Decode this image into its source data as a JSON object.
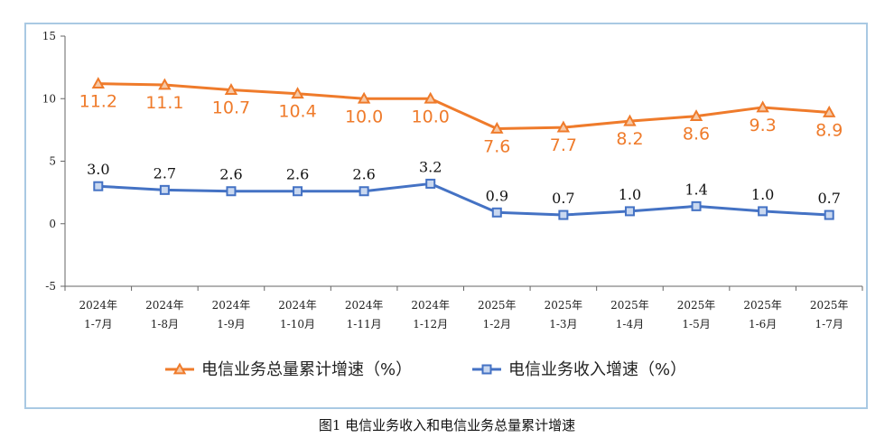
{
  "caption": "图1  电信业务收入和电信业务总量累计增速",
  "colors": {
    "orange": "#ef7b2b",
    "blue": "#4472c4",
    "axis": "#666666",
    "frame": "#a9c9e3"
  },
  "chart_data": {
    "type": "line",
    "categories": [
      [
        "2024年",
        "1-7月"
      ],
      [
        "2024年",
        "1-8月"
      ],
      [
        "2024年",
        "1-9月"
      ],
      [
        "2024年",
        "1-10月"
      ],
      [
        "2024年",
        "1-11月"
      ],
      [
        "2024年",
        "1-12月"
      ],
      [
        "2025年",
        "1-2月"
      ],
      [
        "2025年",
        "1-3月"
      ],
      [
        "2025年",
        "1-4月"
      ],
      [
        "2025年",
        "1-5月"
      ],
      [
        "2025年",
        "1-6月"
      ],
      [
        "2025年",
        "1-7月"
      ]
    ],
    "ylim": [
      -5,
      15
    ],
    "yticks": [
      -5,
      0,
      5,
      10,
      15
    ],
    "series": [
      {
        "name": "电信业务总量累计增速（%）",
        "marker": "triangle",
        "values": [
          11.2,
          11.1,
          10.7,
          10.4,
          10.0,
          10.0,
          7.6,
          7.7,
          8.2,
          8.6,
          9.3,
          8.9
        ],
        "labels": [
          "11.2",
          "11.1",
          "10.7",
          "10.4",
          "10.0",
          "10.0",
          "7.6",
          "7.7",
          "8.2",
          "8.6",
          "9.3",
          "8.9"
        ]
      },
      {
        "name": "电信业务收入增速（%）",
        "marker": "square",
        "values": [
          3.0,
          2.7,
          2.6,
          2.6,
          2.6,
          3.2,
          0.9,
          0.7,
          1.0,
          1.4,
          1.0,
          0.7
        ],
        "labels": [
          "3.0",
          "2.7",
          "2.6",
          "2.6",
          "2.6",
          "3.2",
          "0.9",
          "0.7",
          "1.0",
          "1.4",
          "1.0",
          "0.7"
        ]
      }
    ],
    "legend_position": "bottom"
  }
}
